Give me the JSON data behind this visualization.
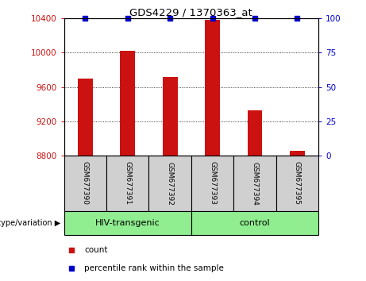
{
  "title": "GDS4229 / 1370363_at",
  "samples": [
    "GSM677390",
    "GSM677391",
    "GSM677392",
    "GSM677393",
    "GSM677394",
    "GSM677395"
  ],
  "counts": [
    9700,
    10020,
    9720,
    10380,
    9330,
    8860
  ],
  "ylim_left": [
    8800,
    10400
  ],
  "ylim_right": [
    0,
    100
  ],
  "yticks_left": [
    8800,
    9200,
    9600,
    10000,
    10400
  ],
  "yticks_right": [
    0,
    25,
    50,
    75,
    100
  ],
  "bar_color": "#cc1111",
  "dot_color": "#0000cc",
  "bar_width": 0.35,
  "group1_label": "HIV-transgenic",
  "group2_label": "control",
  "group_color": "#90ee90",
  "sample_box_color": "#d0d0d0",
  "genotype_label": "genotype/variation",
  "legend_count_label": "count",
  "legend_percentile_label": "percentile rank within the sample",
  "left_tick_color": "#cc1111",
  "right_tick_color": "#0000cc"
}
